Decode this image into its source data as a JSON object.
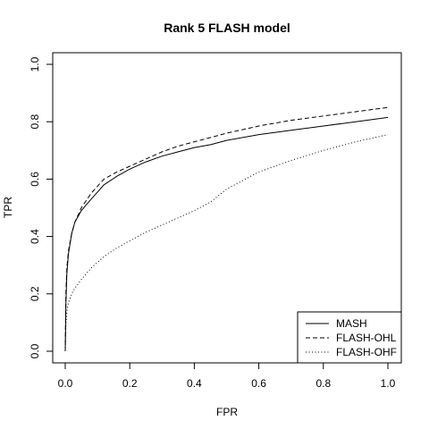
{
  "chart_data": {
    "type": "line",
    "title": "Rank 5 FLASH model",
    "xlabel": "FPR",
    "ylabel": "TPR",
    "xlim": [
      0,
      1
    ],
    "ylim": [
      0,
      1
    ],
    "xticks": [
      "0.0",
      "0.2",
      "0.4",
      "0.6",
      "0.8",
      "1.0"
    ],
    "yticks": [
      "0.0",
      "0.2",
      "0.4",
      "0.6",
      "0.8",
      "1.0"
    ],
    "grid": false,
    "legend": "bottom-right",
    "series": [
      {
        "name": "MASH",
        "linestyle": "solid",
        "points": [
          [
            0,
            0.0
          ],
          [
            0.002,
            0.16
          ],
          [
            0.005,
            0.27
          ],
          [
            0.01,
            0.34
          ],
          [
            0.02,
            0.41
          ],
          [
            0.03,
            0.45
          ],
          [
            0.05,
            0.49
          ],
          [
            0.08,
            0.53
          ],
          [
            0.12,
            0.58
          ],
          [
            0.16,
            0.61
          ],
          [
            0.2,
            0.635
          ],
          [
            0.25,
            0.66
          ],
          [
            0.3,
            0.68
          ],
          [
            0.35,
            0.695
          ],
          [
            0.4,
            0.71
          ],
          [
            0.45,
            0.72
          ],
          [
            0.5,
            0.735
          ],
          [
            0.6,
            0.755
          ],
          [
            0.7,
            0.77
          ],
          [
            0.8,
            0.785
          ],
          [
            0.9,
            0.8
          ],
          [
            1.0,
            0.815
          ]
        ]
      },
      {
        "name": "FLASH-OHL",
        "linestyle": "dashed",
        "points": [
          [
            0,
            0.0
          ],
          [
            0.002,
            0.2
          ],
          [
            0.005,
            0.29
          ],
          [
            0.01,
            0.35
          ],
          [
            0.02,
            0.41
          ],
          [
            0.03,
            0.45
          ],
          [
            0.05,
            0.5
          ],
          [
            0.08,
            0.55
          ],
          [
            0.12,
            0.6
          ],
          [
            0.16,
            0.625
          ],
          [
            0.2,
            0.645
          ],
          [
            0.25,
            0.67
          ],
          [
            0.3,
            0.695
          ],
          [
            0.35,
            0.715
          ],
          [
            0.4,
            0.73
          ],
          [
            0.45,
            0.745
          ],
          [
            0.5,
            0.76
          ],
          [
            0.6,
            0.785
          ],
          [
            0.7,
            0.805
          ],
          [
            0.8,
            0.82
          ],
          [
            0.9,
            0.835
          ],
          [
            1.0,
            0.85
          ]
        ]
      },
      {
        "name": "FLASH-OHF",
        "linestyle": "dotted",
        "points": [
          [
            0,
            0.0
          ],
          [
            0.002,
            0.09
          ],
          [
            0.005,
            0.14
          ],
          [
            0.01,
            0.17
          ],
          [
            0.02,
            0.2
          ],
          [
            0.03,
            0.22
          ],
          [
            0.05,
            0.25
          ],
          [
            0.08,
            0.29
          ],
          [
            0.12,
            0.33
          ],
          [
            0.16,
            0.36
          ],
          [
            0.2,
            0.385
          ],
          [
            0.25,
            0.415
          ],
          [
            0.3,
            0.44
          ],
          [
            0.35,
            0.465
          ],
          [
            0.4,
            0.49
          ],
          [
            0.45,
            0.52
          ],
          [
            0.5,
            0.565
          ],
          [
            0.55,
            0.595
          ],
          [
            0.6,
            0.625
          ],
          [
            0.7,
            0.665
          ],
          [
            0.8,
            0.7
          ],
          [
            0.9,
            0.73
          ],
          [
            1.0,
            0.755
          ]
        ]
      }
    ]
  }
}
